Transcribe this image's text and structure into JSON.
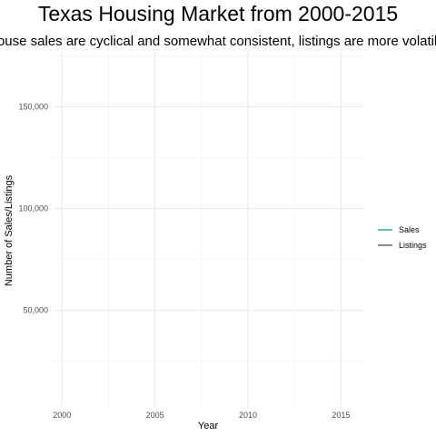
{
  "chart_data": {
    "type": "line",
    "title": "Texas Housing Market from 2000-2015",
    "subtitle": "House sales are cyclical and somewhat consistent, listings are more volatile.",
    "xlabel": "Year",
    "ylabel": "Number of Sales/Listings",
    "xlim": [
      1999.5,
      2016.2
    ],
    "ylim": [
      3000,
      177000
    ],
    "x_ticks": [
      2000,
      2005,
      2010,
      2015
    ],
    "x_tick_labels": [
      "2000",
      "2005",
      "2010",
      "2015"
    ],
    "y_ticks": [
      50000,
      100000,
      150000
    ],
    "y_tick_labels": [
      "50,000",
      "100,000",
      "150,000"
    ],
    "grid": true,
    "legend_position": "right",
    "series": [
      {
        "name": "Sales",
        "color": "#3aa99f",
        "x": [],
        "y": []
      },
      {
        "name": "Listings",
        "color": "#7b5ea7",
        "x": [],
        "y": []
      }
    ]
  }
}
